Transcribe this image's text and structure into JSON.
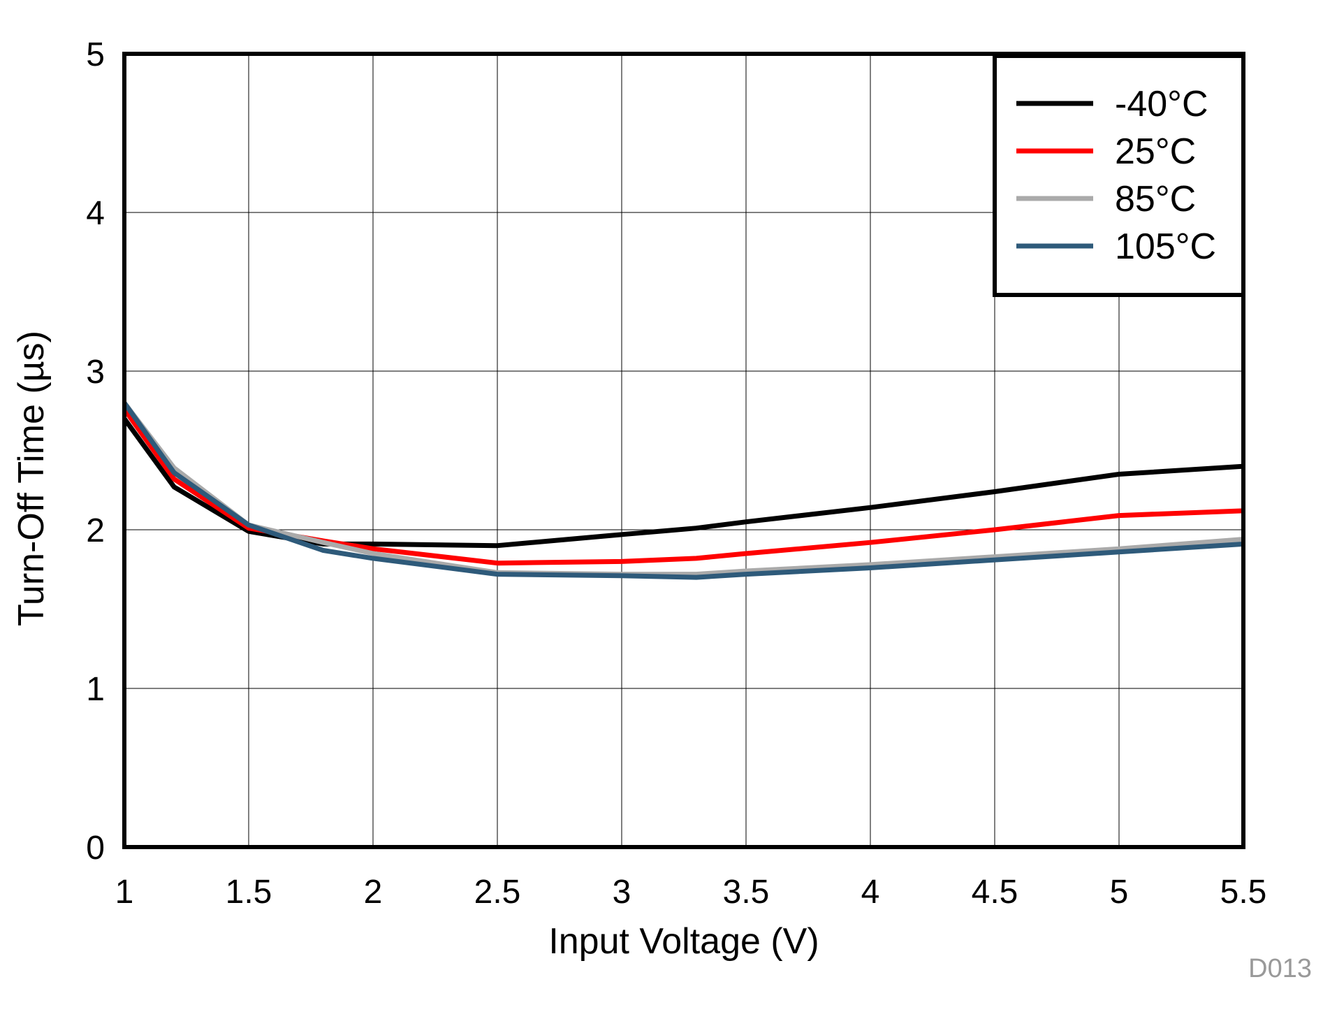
{
  "chart_data": {
    "type": "line",
    "title": "",
    "xlabel": "Input Voltage (V)",
    "ylabel": "Turn-Off Time (µs)",
    "xlim": [
      1,
      5.5
    ],
    "ylim": [
      0,
      5
    ],
    "xticks": [
      1,
      1.5,
      2,
      2.5,
      3,
      3.5,
      4,
      4.5,
      5,
      5.5
    ],
    "xtick_labels": [
      "1",
      "1.5",
      "2",
      "2.5",
      "3",
      "3.5",
      "4",
      "4.5",
      "5",
      "5.5"
    ],
    "yticks": [
      0,
      1,
      2,
      3,
      4,
      5
    ],
    "ytick_labels": [
      "0",
      "1",
      "2",
      "3",
      "4",
      "5"
    ],
    "grid": true,
    "legend_position": "top-right",
    "series": [
      {
        "name": "-40°C",
        "color": "#000000",
        "x": [
          1,
          1.2,
          1.5,
          1.8,
          2,
          2.5,
          3,
          3.3,
          3.5,
          4,
          4.5,
          5,
          5.5
        ],
        "y": [
          2.7,
          2.27,
          1.99,
          1.91,
          1.91,
          1.9,
          1.97,
          2.01,
          2.05,
          2.14,
          2.24,
          2.35,
          2.4
        ]
      },
      {
        "name": "25°C",
        "color": "#ff0000",
        "x": [
          1,
          1.2,
          1.5,
          1.8,
          2,
          2.5,
          3,
          3.3,
          3.5,
          4,
          4.5,
          5,
          5.5
        ],
        "y": [
          2.76,
          2.32,
          2.01,
          1.93,
          1.88,
          1.79,
          1.8,
          1.82,
          1.85,
          1.92,
          2.0,
          2.09,
          2.12
        ]
      },
      {
        "name": "85°C",
        "color": "#aaaaaa",
        "x": [
          1,
          1.2,
          1.5,
          1.8,
          2,
          2.5,
          3,
          3.3,
          3.5,
          4,
          4.5,
          5,
          5.5
        ],
        "y": [
          2.8,
          2.39,
          2.03,
          1.92,
          1.85,
          1.73,
          1.72,
          1.72,
          1.74,
          1.78,
          1.83,
          1.88,
          1.94
        ]
      },
      {
        "name": "105°C",
        "color": "#2e5a7a",
        "x": [
          1,
          1.2,
          1.5,
          1.8,
          2,
          2.5,
          3,
          3.3,
          3.5,
          4,
          4.5,
          5,
          5.5
        ],
        "y": [
          2.8,
          2.36,
          2.03,
          1.87,
          1.82,
          1.72,
          1.71,
          1.7,
          1.72,
          1.76,
          1.81,
          1.86,
          1.91
        ]
      }
    ],
    "annotation": "D013"
  }
}
